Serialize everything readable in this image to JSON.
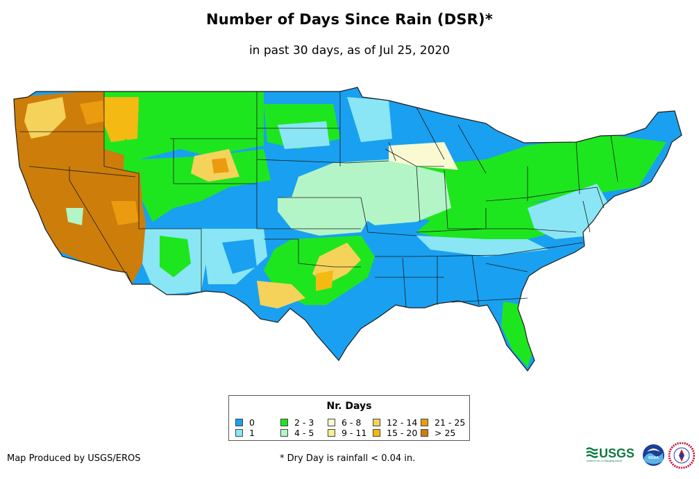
{
  "title": "Number of Days Since Rain (DSR)*",
  "subtitle": "in past 30 days, as of Jul 25, 2020",
  "legend": {
    "title": "Nr. Days",
    "items": [
      {
        "label": "0",
        "color": "#1aa0f0"
      },
      {
        "label": "1",
        "color": "#8ae6f5"
      },
      {
        "label": "2 - 3",
        "color": "#1ee61e"
      },
      {
        "label": "4 - 5",
        "color": "#b4f5c8"
      },
      {
        "label": "6 - 8",
        "color": "#fafad2"
      },
      {
        "label": "9 - 11",
        "color": "#f5f08c"
      },
      {
        "label": "12 - 14",
        "color": "#f5d25a"
      },
      {
        "label": "15 - 20",
        "color": "#f5b914"
      },
      {
        "label": "21 - 25",
        "color": "#eb9b0f"
      },
      {
        "label": "> 25",
        "color": "#cd7d0a"
      }
    ]
  },
  "credit": "Map Produced by USGS/EROS",
  "footnote": "* Dry Day is rainfall < 0.04 in.",
  "logos": {
    "usgs_text": "USGS",
    "usgs_tagline": "science for a changing world",
    "noaa_text": "NOAA"
  },
  "colors": {
    "border": "#1a1a1a",
    "usgs_green": "#0d7a3e"
  }
}
